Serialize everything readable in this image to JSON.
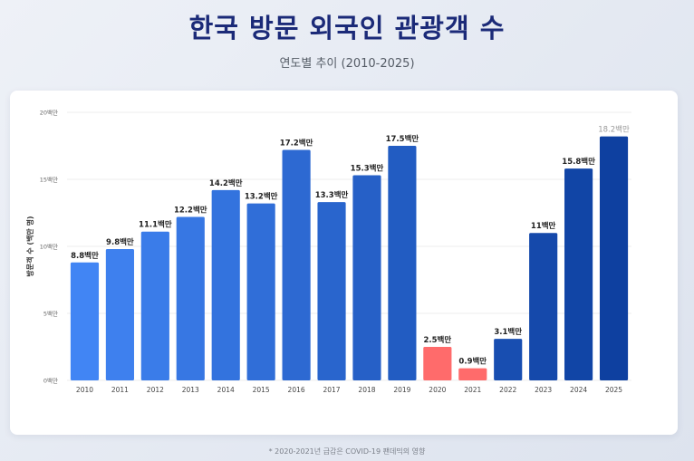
{
  "page": {
    "title": "한국 방문 외국인 관광객 수",
    "subtitle": "연도별 추이 (2010-2025)",
    "footnote": "* 2020-2021년 급감은 COVID-19 팬데믹의 영향"
  },
  "colors": {
    "title": "#1b2a78",
    "bar_gradient_start": "#4185f4",
    "bar_gradient_end": "#0e40a0",
    "covid_bar": "#ff6b6b",
    "label": "#222222",
    "projected_label": "#9a9a9a",
    "grid": "#ececec",
    "axis_text": "#666666"
  },
  "chart_data": {
    "type": "bar",
    "title": "한국 방문 외국인 관광객 수",
    "xlabel": "",
    "ylabel": "방문객 수 (백만 명)",
    "ylim": [
      0,
      20
    ],
    "yticks": [
      0,
      5,
      10,
      15,
      20
    ],
    "ytick_labels": [
      "0백만",
      "5백만",
      "10백만",
      "15백만",
      "20백만"
    ],
    "grid": true,
    "unit_suffix": "백만",
    "categories": [
      "2010",
      "2011",
      "2012",
      "2013",
      "2014",
      "2015",
      "2016",
      "2017",
      "2018",
      "2019",
      "2020",
      "2021",
      "2022",
      "2023",
      "2024",
      "2025"
    ],
    "values": [
      8.8,
      9.8,
      11.1,
      12.2,
      14.2,
      13.2,
      17.2,
      13.3,
      15.3,
      17.5,
      2.5,
      0.9,
      3.1,
      11,
      15.8,
      18.2
    ],
    "data_labels": [
      "8.8백만",
      "9.8백만",
      "11.1백만",
      "12.2백만",
      "14.2백만",
      "13.2백만",
      "17.2백만",
      "13.3백만",
      "15.3백만",
      "17.5백만",
      "2.5백만",
      "0.9백만",
      "3.1백만",
      "11백만",
      "15.8백만",
      "18.2백만"
    ],
    "highlighted_categories": [
      "2020",
      "2021"
    ],
    "projected_categories": [
      "2025"
    ]
  }
}
